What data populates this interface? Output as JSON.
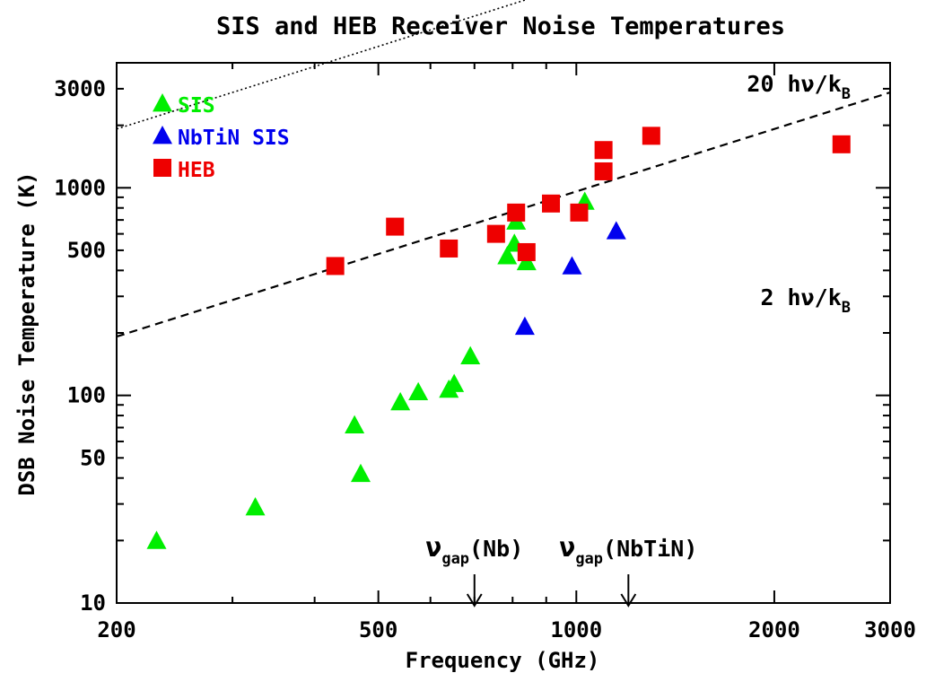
{
  "chart_data": {
    "type": "scatter",
    "title": "SIS and HEB Receiver Noise Temperatures",
    "xlabel": "Frequency (GHz)",
    "ylabel": "DSB Noise Temperature (K)",
    "xscale": "log",
    "yscale": "log",
    "xlim": [
      200,
      3000
    ],
    "ylim": [
      10,
      4000
    ],
    "x_ticks": [
      {
        "value": 200,
        "label": "200"
      },
      {
        "value": 500,
        "label": "500"
      },
      {
        "value": 1000,
        "label": "1000"
      },
      {
        "value": 2000,
        "label": "2000"
      },
      {
        "value": 3000,
        "label": "3000"
      }
    ],
    "y_ticks": [
      {
        "value": 10,
        "label": "10"
      },
      {
        "value": 50,
        "label": "50"
      },
      {
        "value": 100,
        "label": "100"
      },
      {
        "value": 500,
        "label": "500"
      },
      {
        "value": 1000,
        "label": "1000"
      },
      {
        "value": 3000,
        "label": "3000"
      }
    ],
    "legend_position": "top-left",
    "series": [
      {
        "name": "SIS",
        "marker": "triangle",
        "color": "#00ee00",
        "points": [
          [
            230,
            20
          ],
          [
            325,
            29
          ],
          [
            460,
            72
          ],
          [
            470,
            42
          ],
          [
            540,
            93
          ],
          [
            575,
            104
          ],
          [
            640,
            107
          ],
          [
            652,
            114
          ],
          [
            690,
            155
          ],
          [
            785,
            470
          ],
          [
            805,
            540
          ],
          [
            810,
            690
          ],
          [
            840,
            440
          ],
          [
            1030,
            860
          ]
        ]
      },
      {
        "name": "NbTiN SIS",
        "marker": "triangle",
        "color": "#0000ee",
        "points": [
          [
            835,
            215
          ],
          [
            985,
            420
          ],
          [
            1150,
            620
          ]
        ]
      },
      {
        "name": "HEB",
        "marker": "square",
        "color": "#ee0000",
        "points": [
          [
            430,
            420
          ],
          [
            530,
            650
          ],
          [
            640,
            510
          ],
          [
            755,
            600
          ],
          [
            810,
            760
          ],
          [
            840,
            490
          ],
          [
            915,
            840
          ],
          [
            1010,
            760
          ],
          [
            1100,
            1200
          ],
          [
            1100,
            1520
          ],
          [
            1300,
            1780
          ],
          [
            2530,
            1620
          ]
        ]
      }
    ],
    "lines": [
      {
        "label": "20 hν/k",
        "subscript": "B",
        "style": "dotted",
        "coef": 9.6
      },
      {
        "label": "2 hν/k",
        "subscript": "B",
        "style": "dashed",
        "coef": 0.96
      }
    ],
    "annotations": [
      {
        "label": "ν",
        "subscript": "gap",
        "suffix": "(Nb)",
        "x": 700
      },
      {
        "label": "ν",
        "subscript": "gap",
        "suffix": "(NbTiN)",
        "x": 1200
      }
    ]
  }
}
